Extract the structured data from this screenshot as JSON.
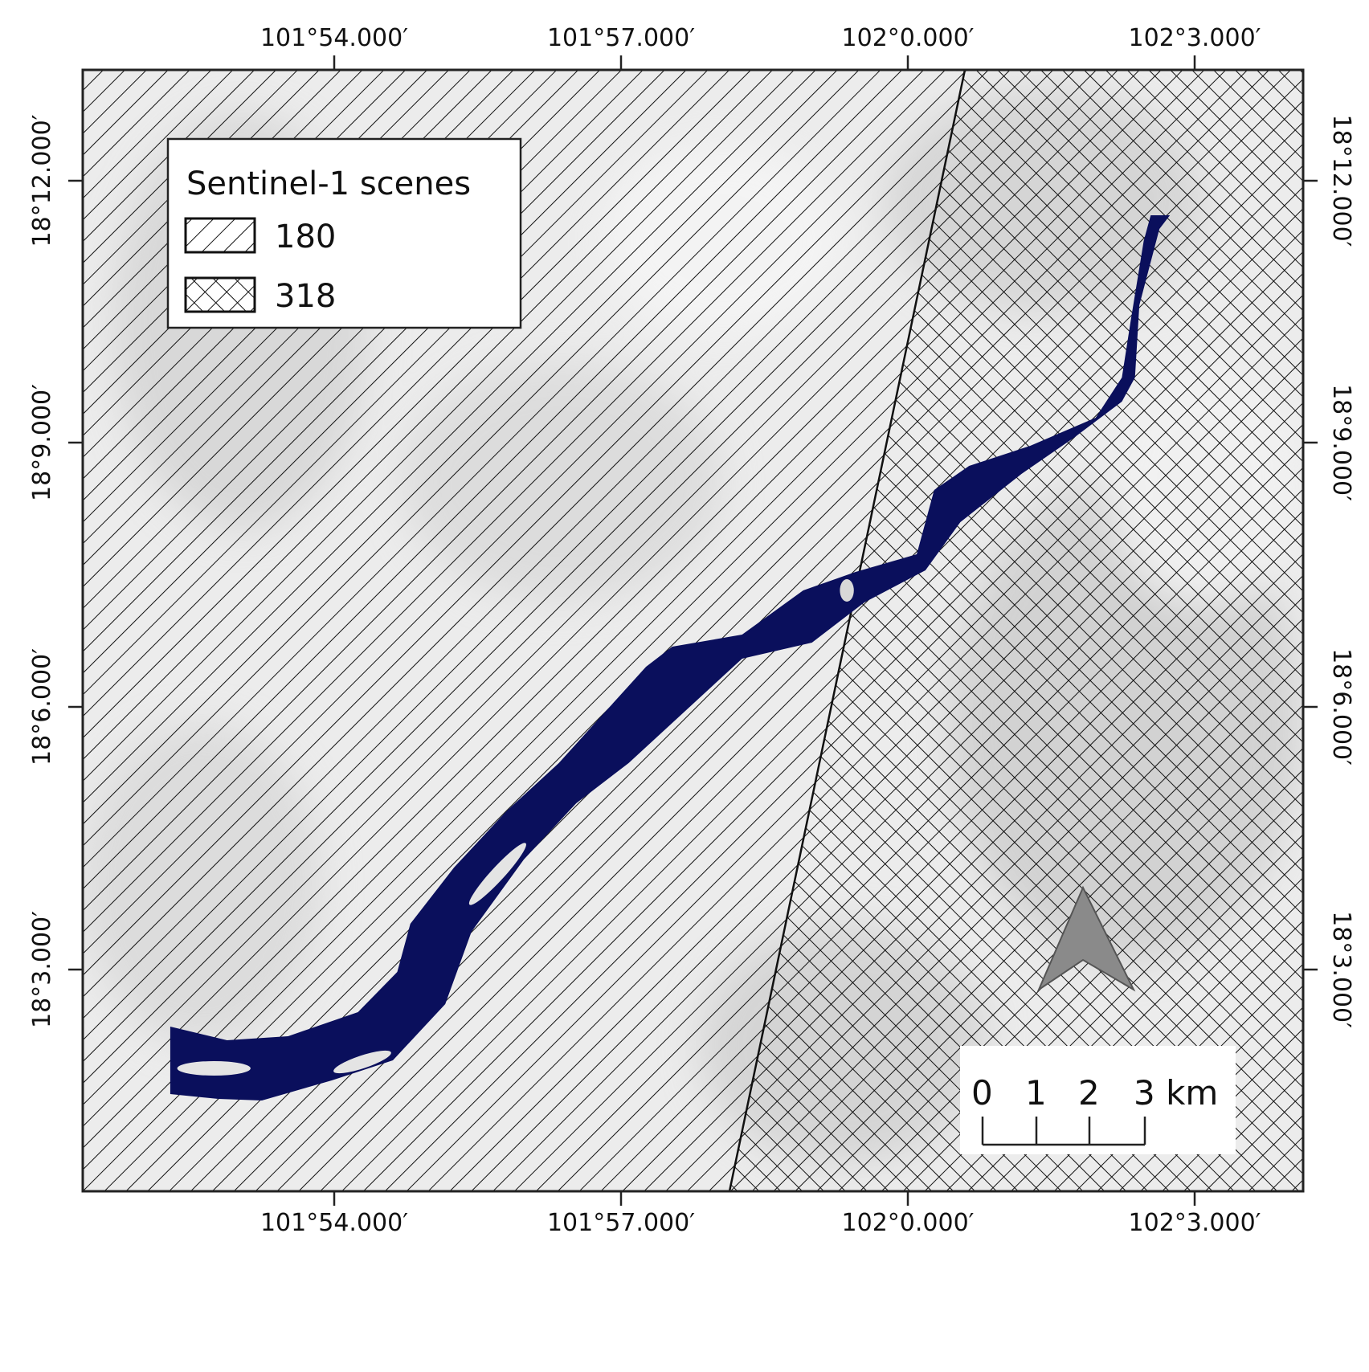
{
  "map": {
    "x_labels": [
      "101°54.000′",
      "101°57.000′",
      "102°0.000′",
      "102°3.000′"
    ],
    "y_labels": [
      "18°12.000′",
      "18°9.000′",
      "18°6.000′",
      "18°3.000′"
    ],
    "legend": {
      "title": "Sentinel-1 scenes",
      "items": [
        {
          "label": "180"
        },
        {
          "label": "318"
        }
      ]
    },
    "scale_bar": {
      "labels": [
        "0",
        "1",
        "2",
        "3 km"
      ]
    }
  }
}
